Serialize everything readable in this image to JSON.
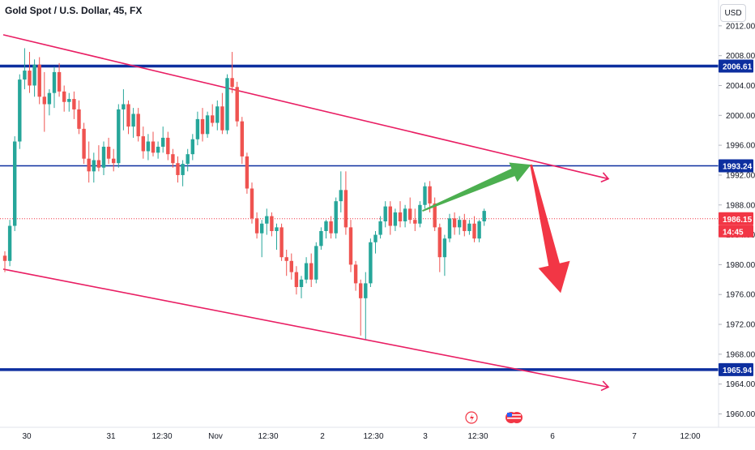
{
  "header": {
    "symbol": "Gold Spot / U.S. Dollar, 45, FX",
    "currency": "USD"
  },
  "chart_data": {
    "type": "candlestick",
    "title": "Gold Spot / U.S. Dollar, 45, FX",
    "y_ticks": [
      "1960.00",
      "1964.00",
      "1968.00",
      "1972.00",
      "1976.00",
      "1980.00",
      "1984.00",
      "1988.00",
      "1992.00",
      "1996.00",
      "2000.00",
      "2004.00",
      "2008.00",
      "2012.00"
    ],
    "ylim": [
      1959,
      2012.5
    ],
    "x_labels": [
      "30",
      "31",
      "12:30",
      "Nov",
      "12:30",
      "2",
      "12:30",
      "3",
      "12:30",
      "6",
      "7",
      "12:00"
    ],
    "price_labels": [
      {
        "text": "2006.61",
        "color": "#0d2f9f"
      },
      {
        "text": "1993.24",
        "color": "#0d2f9f"
      },
      {
        "text": "1986.15",
        "color": "#f23645"
      },
      {
        "text": "14:45",
        "color": "#f23645"
      },
      {
        "text": "1965.94",
        "color": "#0d2f9f"
      }
    ],
    "horizontal_levels": [
      2006.61,
      1993.24,
      1965.94
    ],
    "last_price": 1986.15,
    "trend_lines": [
      {
        "from": [
          0,
          2010.8
        ],
        "to": [
          110,
          1991.5
        ]
      },
      {
        "from": [
          0,
          1979.4
        ],
        "to": [
          110,
          1963.6
        ]
      }
    ],
    "projections": [
      {
        "color": "#4caf50",
        "from": [
          84.5,
          1987.2
        ],
        "to": [
          95.5,
          1993.4
        ]
      },
      {
        "color": "#f23645",
        "from": [
          95.5,
          1993.4
        ],
        "to": [
          101.5,
          1976.2
        ]
      }
    ],
    "candles": [
      [
        1981.2,
        1981.8,
        1979.0,
        1980.5
      ],
      [
        1980.5,
        1986.0,
        1979.8,
        1985.2
      ],
      [
        1985.2,
        1997.2,
        1984.5,
        1996.5
      ],
      [
        1996.5,
        2005.5,
        1995.5,
        2004.8
      ],
      [
        2004.8,
        2009.0,
        2003.5,
        2006.0
      ],
      [
        2006.0,
        2008.5,
        2003.0,
        2004.0
      ],
      [
        2004.0,
        2007.5,
        2002.5,
        2006.8
      ],
      [
        2006.8,
        2007.8,
        2001.5,
        2002.5
      ],
      [
        2002.5,
        2005.8,
        1997.8,
        2001.5
      ],
      [
        2001.5,
        2003.5,
        2000.0,
        2003.0
      ],
      [
        2003.0,
        2006.5,
        2001.0,
        2005.8
      ],
      [
        2005.8,
        2007.0,
        2002.5,
        2003.2
      ],
      [
        2003.2,
        2004.0,
        2000.5,
        2001.8
      ],
      [
        2001.8,
        2003.0,
        2000.5,
        2002.2
      ],
      [
        2002.2,
        2003.2,
        1999.5,
        2000.8
      ],
      [
        2000.8,
        2002.0,
        1997.5,
        1998.2
      ],
      [
        1998.2,
        1999.0,
        1993.5,
        1994.2
      ],
      [
        1994.2,
        1996.5,
        1991.0,
        1992.5
      ],
      [
        1992.5,
        1995.0,
        1991.0,
        1994.0
      ],
      [
        1994.0,
        1996.0,
        1992.5,
        1993.0
      ],
      [
        1993.0,
        1996.5,
        1992.0,
        1995.8
      ],
      [
        1995.8,
        1997.0,
        1993.5,
        1994.2
      ],
      [
        1994.2,
        1995.5,
        1992.5,
        1993.6
      ],
      [
        1993.6,
        2001.5,
        1993.0,
        2000.8
      ],
      [
        2000.8,
        2003.5,
        1998.0,
        2001.5
      ],
      [
        2001.5,
        2002.0,
        1997.5,
        1998.5
      ],
      [
        1998.5,
        2001.0,
        1997.0,
        2000.2
      ],
      [
        2000.2,
        2001.0,
        1996.5,
        1997.2
      ],
      [
        1997.2,
        1998.5,
        1994.2,
        1995.2
      ],
      [
        1995.2,
        1997.5,
        1994.0,
        1996.5
      ],
      [
        1996.5,
        1997.8,
        1994.5,
        1995.0
      ],
      [
        1995.0,
        1996.5,
        1994.2,
        1995.8
      ],
      [
        1995.8,
        1998.5,
        1995.0,
        1997.0
      ],
      [
        1997.0,
        1997.8,
        1994.0,
        1994.8
      ],
      [
        1994.8,
        1995.5,
        1993.0,
        1993.6
      ],
      [
        1993.6,
        1994.5,
        1991.0,
        1992.0
      ],
      [
        1992.0,
        1994.0,
        1990.5,
        1993.5
      ],
      [
        1993.5,
        1995.5,
        1992.5,
        1994.8
      ],
      [
        1994.8,
        1997.5,
        1994.0,
        1996.8
      ],
      [
        1996.8,
        2000.5,
        1996.0,
        1999.5
      ],
      [
        1999.5,
        2001.0,
        1996.5,
        1997.5
      ],
      [
        1997.5,
        2000.5,
        1997.0,
        2000.0
      ],
      [
        2000.0,
        2001.5,
        1998.5,
        1999.0
      ],
      [
        1999.0,
        2002.0,
        1998.0,
        2001.2
      ],
      [
        2001.2,
        2003.0,
        1997.5,
        1998.0
      ],
      [
        1998.0,
        2005.5,
        1997.5,
        2005.0
      ],
      [
        2005.0,
        2008.5,
        2003.0,
        2003.8
      ],
      [
        2003.8,
        2004.5,
        1998.5,
        1999.2
      ],
      [
        1999.2,
        1999.8,
        1993.5,
        1994.5
      ],
      [
        1994.5,
        1995.0,
        1989.5,
        1990.2
      ],
      [
        1990.2,
        1991.0,
        1985.5,
        1986.2
      ],
      [
        1986.2,
        1987.0,
        1983.5,
        1984.2
      ],
      [
        1984.2,
        1986.0,
        1981.0,
        1985.5
      ],
      [
        1985.5,
        1987.5,
        1984.0,
        1986.5
      ],
      [
        1986.5,
        1987.0,
        1983.8,
        1984.5
      ],
      [
        1984.5,
        1985.5,
        1982.0,
        1985.0
      ],
      [
        1985.0,
        1985.5,
        1980.5,
        1981.0
      ],
      [
        1981.0,
        1982.0,
        1978.5,
        1980.5
      ],
      [
        1980.5,
        1981.5,
        1978.0,
        1979.0
      ],
      [
        1979.0,
        1979.8,
        1976.0,
        1977.0
      ],
      [
        1977.0,
        1978.5,
        1975.5,
        1978.0
      ],
      [
        1978.0,
        1981.0,
        1977.5,
        1980.2
      ],
      [
        1980.2,
        1981.5,
        1977.0,
        1978.0
      ],
      [
        1978.0,
        1983.0,
        1977.5,
        1982.5
      ],
      [
        1982.5,
        1985.0,
        1982.0,
        1984.5
      ],
      [
        1984.5,
        1986.0,
        1983.5,
        1985.8
      ],
      [
        1985.8,
        1986.5,
        1983.5,
        1984.2
      ],
      [
        1984.2,
        1989.0,
        1983.5,
        1988.5
      ],
      [
        1988.5,
        1992.5,
        1987.0,
        1990.0
      ],
      [
        1990.0,
        1992.5,
        1984.0,
        1985.0
      ],
      [
        1985.0,
        1986.0,
        1979.0,
        1980.0
      ],
      [
        1980.0,
        1980.5,
        1976.5,
        1977.5
      ],
      [
        1977.5,
        1978.0,
        1970.5,
        1975.5
      ],
      [
        1975.5,
        1979.0,
        1970.0,
        1977.5
      ],
      [
        1977.5,
        1983.5,
        1977.0,
        1983.0
      ],
      [
        1983.0,
        1984.5,
        1981.5,
        1984.0
      ],
      [
        1984.0,
        1986.5,
        1983.5,
        1985.8
      ],
      [
        1985.8,
        1988.5,
        1985.0,
        1987.8
      ],
      [
        1987.8,
        1988.5,
        1984.0,
        1985.2
      ],
      [
        1985.2,
        1987.5,
        1984.5,
        1987.0
      ],
      [
        1987.0,
        1988.5,
        1985.0,
        1985.8
      ],
      [
        1985.8,
        1988.0,
        1985.0,
        1987.5
      ],
      [
        1987.5,
        1989.0,
        1985.5,
        1986.0
      ],
      [
        1986.0,
        1987.5,
        1984.5,
        1985.5
      ],
      [
        1985.5,
        1988.5,
        1985.0,
        1988.0
      ],
      [
        1988.0,
        1991.0,
        1987.5,
        1990.5
      ],
      [
        1990.5,
        1991.2,
        1987.0,
        1988.2
      ],
      [
        1988.2,
        1989.0,
        1984.5,
        1985.0
      ],
      [
        1985.0,
        1985.5,
        1979.0,
        1981.0
      ],
      [
        1981.0,
        1984.0,
        1978.5,
        1983.5
      ],
      [
        1983.5,
        1986.8,
        1983.0,
        1986.2
      ],
      [
        1986.2,
        1987.0,
        1984.0,
        1985.0
      ],
      [
        1985.0,
        1986.5,
        1984.0,
        1986.0
      ],
      [
        1986.0,
        1986.8,
        1983.8,
        1984.5
      ],
      [
        1984.5,
        1986.0,
        1984.0,
        1985.5
      ],
      [
        1985.5,
        1986.5,
        1983.0,
        1983.5
      ],
      [
        1983.5,
        1986.0,
        1983.0,
        1985.8
      ],
      [
        1985.8,
        1987.5,
        1985.2,
        1987.2
      ]
    ]
  }
}
